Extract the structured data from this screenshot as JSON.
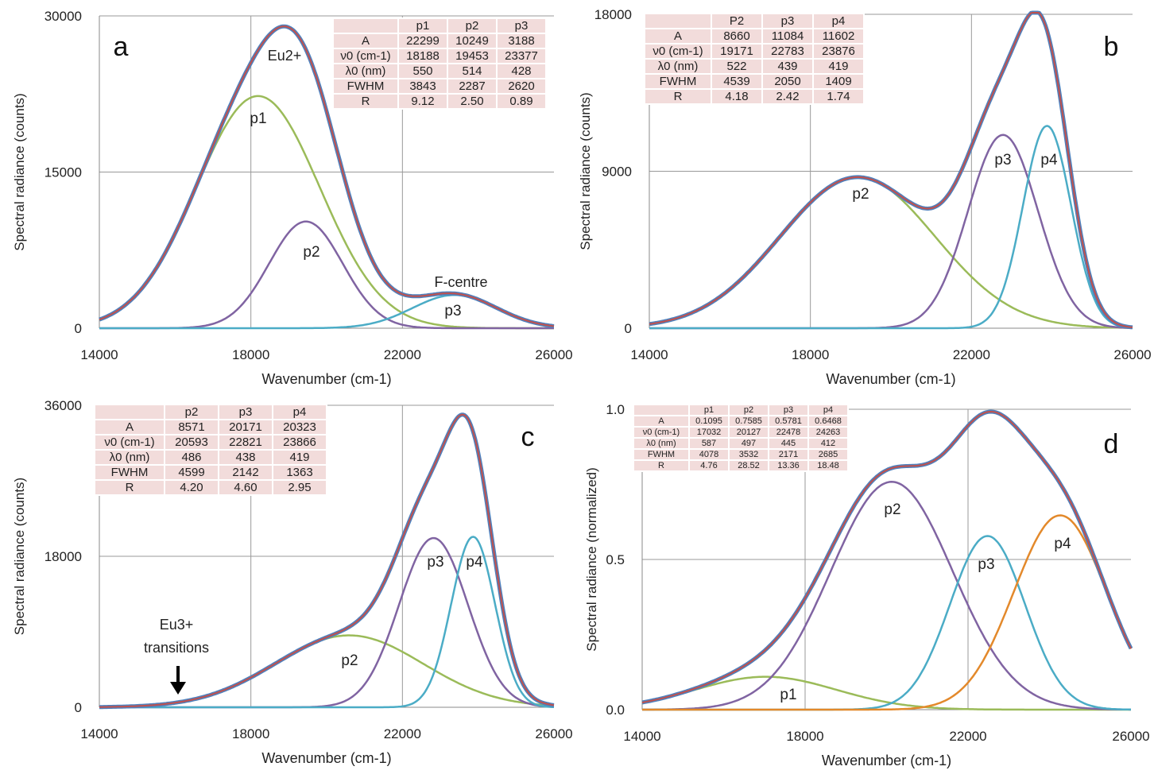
{
  "chart_data": [
    {
      "panel": "a",
      "type": "line",
      "xlabel": "Wavenumber (cm-1)",
      "ylabel": "Spectral radiance (counts)",
      "xlim": [
        14000,
        26000
      ],
      "ylim": [
        0,
        30000
      ],
      "xticks": [
        "14000",
        "18000",
        "22000",
        "26000"
      ],
      "yticks": [
        "0",
        "15000",
        "30000"
      ],
      "grid": true,
      "table": {
        "header": [
          "",
          "p1",
          "p2",
          "p3"
        ],
        "rows": [
          [
            "A",
            "22299",
            "10249",
            "3188"
          ],
          [
            "ν0 (cm-1)",
            "18188",
            "19453",
            "23377"
          ],
          [
            "λ0 (nm)",
            "550",
            "514",
            "428"
          ],
          [
            "FWHM",
            "3843",
            "2287",
            "2620"
          ],
          [
            "R",
            "9.12",
            "2.50",
            "0.89"
          ]
        ]
      },
      "series": [
        {
          "name": "p1",
          "A": 22299,
          "v0": 18188,
          "fwhm": 3843,
          "color": "#9bbb59"
        },
        {
          "name": "p2",
          "A": 10249,
          "v0": 19453,
          "fwhm": 2287,
          "color": "#8064a2"
        },
        {
          "name": "p3",
          "A": 3188,
          "v0": 23377,
          "fwhm": 2620,
          "color": "#4bacc6"
        }
      ],
      "annotations": [
        "Eu2+",
        "F-centre"
      ]
    },
    {
      "panel": "b",
      "type": "line",
      "xlabel": "Wavenumber (cm-1)",
      "ylabel": "Spectral radiance (counts)",
      "xlim": [
        14000,
        26000
      ],
      "ylim": [
        0,
        18000
      ],
      "xticks": [
        "14000",
        "18000",
        "22000",
        "26000"
      ],
      "yticks": [
        "0",
        "9000",
        "18000"
      ],
      "grid": true,
      "table": {
        "header": [
          "",
          "P2",
          "p3",
          "p4"
        ],
        "rows": [
          [
            "A",
            "8660",
            "11084",
            "11602"
          ],
          [
            "ν0 (cm-1)",
            "19171",
            "22783",
            "23876"
          ],
          [
            "λ0 (nm)",
            "522",
            "439",
            "419"
          ],
          [
            "FWHM",
            "4539",
            "2050",
            "1409"
          ],
          [
            "R",
            "4.18",
            "2.42",
            "1.74"
          ]
        ]
      },
      "series": [
        {
          "name": "p2",
          "A": 8660,
          "v0": 19171,
          "fwhm": 4539,
          "color": "#9bbb59"
        },
        {
          "name": "p3",
          "A": 11084,
          "v0": 22783,
          "fwhm": 2050,
          "color": "#8064a2"
        },
        {
          "name": "p4",
          "A": 11602,
          "v0": 23876,
          "fwhm": 1409,
          "color": "#4bacc6"
        }
      ],
      "annotations": []
    },
    {
      "panel": "c",
      "type": "line",
      "xlabel": "Wavenumber (cm-1)",
      "ylabel": "Spectral radiance (counts)",
      "xlim": [
        14000,
        26000
      ],
      "ylim": [
        0,
        36000
      ],
      "xticks": [
        "14000",
        "18000",
        "22000",
        "26000"
      ],
      "yticks": [
        "0",
        "18000",
        "36000"
      ],
      "grid": true,
      "table": {
        "header": [
          "",
          "p2",
          "p3",
          "p4"
        ],
        "rows": [
          [
            "A",
            "8571",
            "20171",
            "20323"
          ],
          [
            "ν0 (cm-1)",
            "20593",
            "22821",
            "23866"
          ],
          [
            "λ0 (nm)",
            "486",
            "438",
            "419"
          ],
          [
            "FWHM",
            "4599",
            "2142",
            "1363"
          ],
          [
            "R",
            "4.20",
            "4.60",
            "2.95"
          ]
        ]
      },
      "series": [
        {
          "name": "p2",
          "A": 8571,
          "v0": 20593,
          "fwhm": 4599,
          "color": "#9bbb59"
        },
        {
          "name": "p3",
          "A": 20171,
          "v0": 22821,
          "fwhm": 2142,
          "color": "#8064a2"
        },
        {
          "name": "p4",
          "A": 20323,
          "v0": 23866,
          "fwhm": 1363,
          "color": "#4bacc6"
        }
      ],
      "annotations": [
        "Eu3+",
        "transitions"
      ]
    },
    {
      "panel": "d",
      "type": "line",
      "xlabel": "Wavenumber (cm-1)",
      "ylabel": "Spectral radiance (normalized)",
      "xlim": [
        14000,
        26000
      ],
      "ylim": [
        0,
        1
      ],
      "xticks": [
        "14000",
        "18000",
        "22000",
        "26000"
      ],
      "yticks": [
        "0.0",
        "0.5",
        "1.0"
      ],
      "grid": true,
      "table": {
        "header": [
          "",
          "p1",
          "p2",
          "p3",
          "p4"
        ],
        "rows": [
          [
            "A",
            "0.1095",
            "0.7585",
            "0.5781",
            "0.6468"
          ],
          [
            "ν0 (cm-1)",
            "17032",
            "20127",
            "22478",
            "24263"
          ],
          [
            "λ0 (nm)",
            "587",
            "497",
            "445",
            "412"
          ],
          [
            "FWHM",
            "4078",
            "3532",
            "2171",
            "2685"
          ],
          [
            "R",
            "4.76",
            "28.52",
            "13.36",
            "18.48"
          ]
        ]
      },
      "series": [
        {
          "name": "p1",
          "A": 0.1095,
          "v0": 17032,
          "fwhm": 4078,
          "color": "#9bbb59"
        },
        {
          "name": "p2",
          "A": 0.7585,
          "v0": 20127,
          "fwhm": 3532,
          "color": "#8064a2"
        },
        {
          "name": "p3",
          "A": 0.5781,
          "v0": 22478,
          "fwhm": 2171,
          "color": "#4bacc6"
        },
        {
          "name": "p4",
          "A": 0.6468,
          "v0": 24263,
          "fwhm": 2685,
          "color": "#e3892b"
        }
      ],
      "annotations": []
    }
  ],
  "colors": {
    "measured": "#4f81bd",
    "fit": "#c0504d"
  }
}
